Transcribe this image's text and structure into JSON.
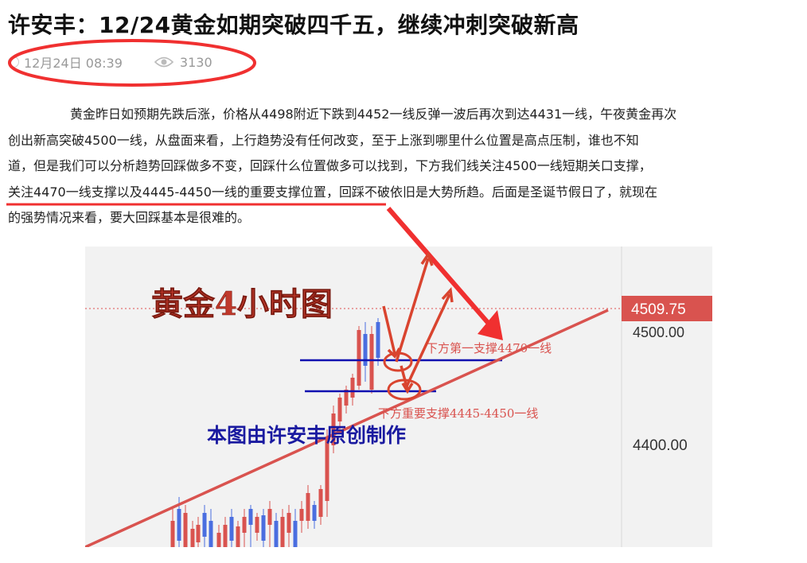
{
  "article": {
    "title": "许安丰：12/24黄金如期突破四千五，继续冲刺突破新高",
    "date": "12月24日 08:39",
    "views": "3130",
    "icons": {
      "time": "clock-icon",
      "views": "eye-icon"
    },
    "paragraph_lines": [
      "黄金昨日如预期先跌后涨，价格从4498附近下跌到4452一线反弹一波后再次到达4431一线，午夜黄金再次",
      "创出新高突破4500一线，从盘面来看，上行趋势没有任何改变，至于上涨到哪里什么位置是高点压制，谁也不知",
      "道，但是我们可以分析趋势回踩做多不变，回踩什么位置做多可以找到，下方我们线关注4500一线短期关口支撑，",
      "的强势情况来看，要大回踩基本是很难的。"
    ],
    "line4_highlight": "关注4470一线支撑以及4445-4450一线的重要支撑位置",
    "line4_rest": "，回踩不破依旧是大势所趋。后面是圣诞节假日了，就现在"
  },
  "chart_image": {
    "heading": "黄金4小时图",
    "credit": "本图由许安丰原创制作",
    "current_price": "4509.75",
    "hidden_tick": "4500.00",
    "tick_4400": "4400.00",
    "support_1": "下方第一支撑4470一线",
    "support_2": "下方重要支撑4445-4450一线",
    "colors": {
      "annotation_red": "#e8392f",
      "support_blue": "#1010b0",
      "up": "#d9534f",
      "down": "#4a6ee0"
    }
  }
}
